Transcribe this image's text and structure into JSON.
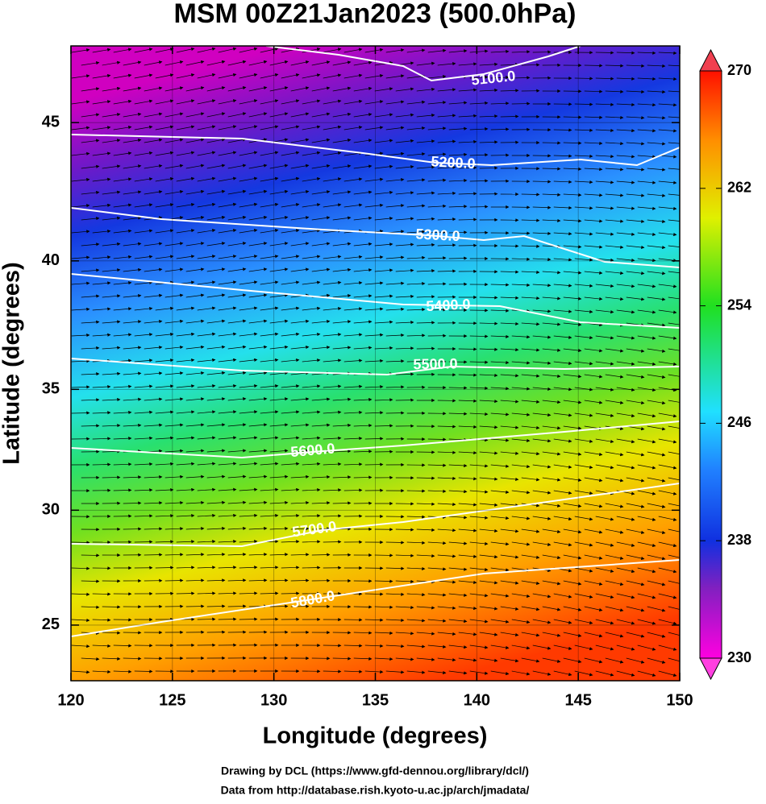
{
  "chart_data": {
    "type": "contour-map",
    "title": "MSM 00Z21Jan2023 (500.0hPa)",
    "xlabel": "Longitude (degrees)",
    "ylabel": "Latitude  (degrees)",
    "projection": "mercator",
    "xlim": [
      120,
      150
    ],
    "xticks": [
      120,
      125,
      130,
      135,
      140,
      145,
      150
    ],
    "ylim": [
      22.5,
      47.6
    ],
    "yticks": [
      25,
      30,
      35,
      40,
      45
    ],
    "grid": true,
    "colorbar": {
      "lim": [
        230,
        270
      ],
      "ticks": [
        230,
        238,
        246,
        254,
        262,
        270
      ]
    },
    "contours": {
      "levels": [
        5100,
        5200,
        5300,
        5400,
        5500,
        5600,
        5700,
        5800
      ],
      "value_labels": [
        "5100.0",
        "5200.0",
        "5300.0",
        "5400.0",
        "5500.0",
        "5600.0",
        "5700.0",
        "5800.0"
      ],
      "color": "#ffffff"
    },
    "footer": [
      "Drawing by DCL (https://www.gfd-dennou.org/library/dcl/)",
      "Data from http://database.rish.kyoto-u.ac.jp/arch/jmadata/"
    ]
  }
}
